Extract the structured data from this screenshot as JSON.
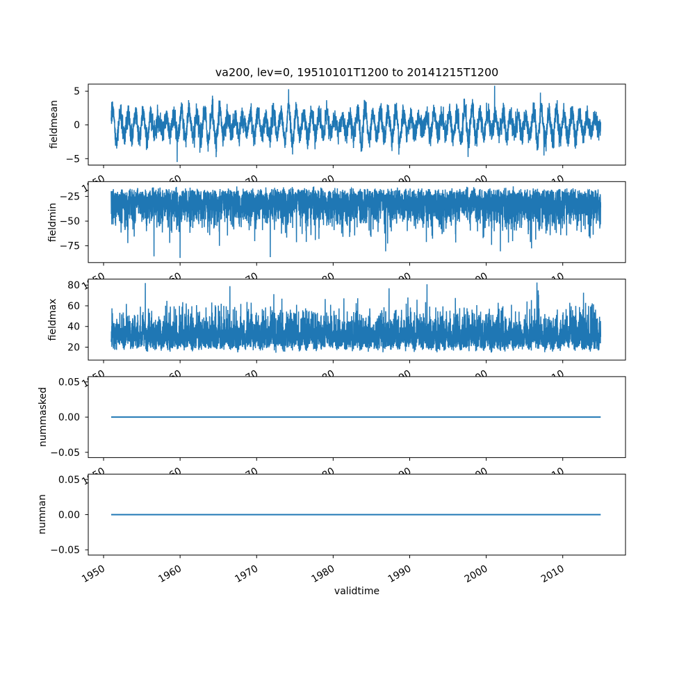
{
  "figure": {
    "title": "va200, lev=0, 19510101T1200 to 20141215T1200",
    "xlabel": "validtime",
    "background_color": "#ffffff",
    "line_color": "#1f77b4",
    "axis_color": "#000000",
    "x_tick_rotation_deg": 30,
    "x_ticks": [
      {
        "v": 1950,
        "label": "1950"
      },
      {
        "v": 1960,
        "label": "1960"
      },
      {
        "v": 1970,
        "label": "1970"
      },
      {
        "v": 1980,
        "label": "1980"
      },
      {
        "v": 1990,
        "label": "1990"
      },
      {
        "v": 2000,
        "label": "2000"
      },
      {
        "v": 2010,
        "label": "2010"
      }
    ],
    "x_data_range": [
      1951.0,
      2014.96
    ]
  },
  "chart_data": [
    {
      "type": "line",
      "name": "fieldmean",
      "ylabel": "fieldmean",
      "y_ticks": [
        {
          "v": 5,
          "label": "5"
        },
        {
          "v": 0,
          "label": "0"
        },
        {
          "v": -5,
          "label": "−5"
        }
      ],
      "ylim": [
        -5.95,
        6.05
      ],
      "x_range": [
        1951.0,
        2014.96
      ],
      "description": "dense noisy time series oscillating annually around 0, typical band -3.5 to 3.5",
      "observed_extremes": {
        "min": -5.5,
        "min_t": 1959.6,
        "max": 5.8,
        "max_t": 2001.1
      },
      "synth": {
        "kind": "seasonal",
        "seed": 101,
        "samples_per_year": 73,
        "amp_base": 1.7,
        "noise_sd": 0.8,
        "clamp": [
          -5.55,
          5.8
        ],
        "spikes": [
          {
            "t": 1959.62,
            "v": -5.5
          },
          {
            "t": 2001.1,
            "v": 5.8
          }
        ]
      }
    },
    {
      "type": "line",
      "name": "fieldmin",
      "ylabel": "fieldmin",
      "y_ticks": [
        {
          "v": -25,
          "label": "−25"
        },
        {
          "v": -50,
          "label": "−50"
        },
        {
          "v": -75,
          "label": "−75"
        }
      ],
      "ylim": [
        -92,
        -10
      ],
      "x_range": [
        1951.0,
        2014.96
      ],
      "description": "dense noisy band from about -15 down to -60 with downward spikes to about -87",
      "observed_extremes": {
        "min": -87.3,
        "min_t": 1960.0,
        "max": -14.0
      },
      "synth": {
        "kind": "band",
        "seed": 202,
        "samples_per_year": 73,
        "sign": -1,
        "edge": 14,
        "edge_jitter": 3.5,
        "seasonal": 1.5,
        "phase": 2.0,
        "half_normal": 15.5,
        "tail": 13,
        "clamp_mag": 86.5,
        "spikes": [
          {
            "t": 1960.0,
            "v": -87.3
          }
        ]
      }
    },
    {
      "type": "line",
      "name": "fieldmax",
      "ylabel": "fieldmax",
      "y_ticks": [
        {
          "v": 20,
          "label": "20"
        },
        {
          "v": 40,
          "label": "40"
        },
        {
          "v": 60,
          "label": "60"
        },
        {
          "v": 80,
          "label": "80"
        }
      ],
      "ylim": [
        7.5,
        85.8
      ],
      "x_range": [
        1951.0,
        2014.96
      ],
      "description": "dense noisy band from about 15 up to 60 with upward spikes to about 82",
      "observed_extremes": {
        "min": 14.0,
        "max": 82,
        "max_t": 1955.45
      },
      "synth": {
        "kind": "band",
        "seed": 303,
        "samples_per_year": 73,
        "sign": 1,
        "edge": 14,
        "edge_jitter": 3,
        "seasonal": 2.0,
        "phase": 0.9,
        "half_normal": 14.5,
        "tail": 12,
        "clamp_mag": 82.5,
        "spikes": [
          {
            "t": 1955.45,
            "v": 82
          },
          {
            "t": 1966.5,
            "v": 79
          },
          {
            "t": 1987.3,
            "v": 77
          },
          {
            "t": 2006.8,
            "v": 75
          }
        ]
      }
    },
    {
      "type": "line",
      "name": "nummasked",
      "ylabel": "nummasked",
      "y_ticks": [
        {
          "v": 0.05,
          "label": "0.05"
        },
        {
          "v": 0,
          "label": "0.00"
        },
        {
          "v": -0.05,
          "label": "−0.05"
        }
      ],
      "ylim": [
        -0.0575,
        0.0575
      ],
      "x_range": [
        1951.0,
        2014.96
      ],
      "description": "constant zero line",
      "constant_value": 0,
      "synth": {
        "kind": "constant",
        "value": 0
      }
    },
    {
      "type": "line",
      "name": "numnan",
      "ylabel": "numnan",
      "y_ticks": [
        {
          "v": 0.05,
          "label": "0.05"
        },
        {
          "v": 0,
          "label": "0.00"
        },
        {
          "v": -0.05,
          "label": "−0.05"
        }
      ],
      "ylim": [
        -0.0575,
        0.0575
      ],
      "x_range": [
        1951.0,
        2014.96
      ],
      "description": "constant zero line",
      "constant_value": 0,
      "synth": {
        "kind": "constant",
        "value": 0
      }
    }
  ]
}
